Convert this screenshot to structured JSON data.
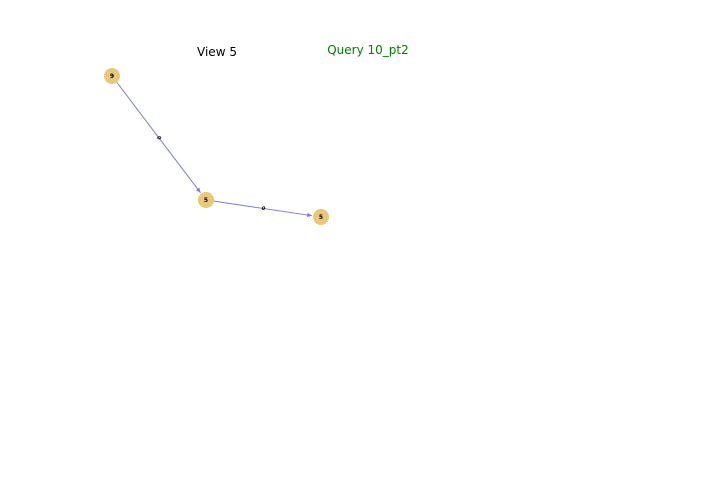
{
  "view_title": "View 5",
  "query_title": "Query 10_pt2",
  "colors": {
    "view_title": "#000000",
    "query_title": "#008000",
    "node_fill": "#e8c87a",
    "edge": "#7b7be8",
    "label": "#000000"
  },
  "graph": {
    "nodes": [
      {
        "id": "a",
        "label": "9"
      },
      {
        "id": "b",
        "label": "5"
      },
      {
        "id": "c",
        "label": "5"
      }
    ],
    "edges": [
      {
        "source": "a",
        "target": "b",
        "label": "0"
      },
      {
        "source": "b",
        "target": "c",
        "label": "0"
      }
    ]
  }
}
